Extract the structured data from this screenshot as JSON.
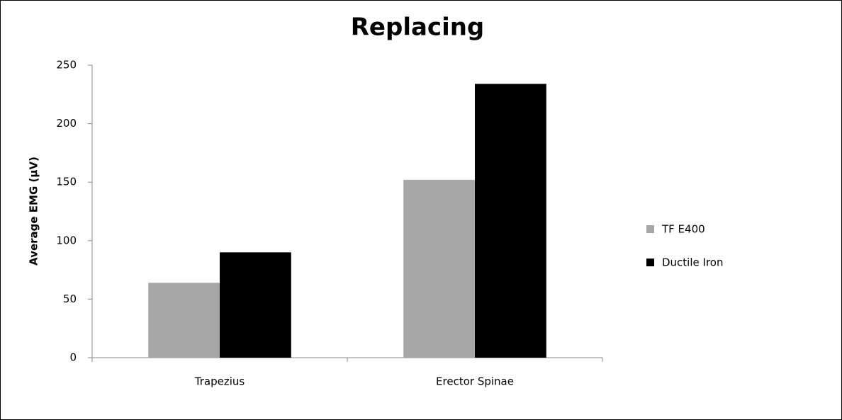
{
  "chart_data": {
    "type": "bar",
    "title": "Replacing",
    "y_label": "Average EMG (µV)",
    "categories": [
      "Trapezius",
      "Erector Spinae"
    ],
    "series": [
      {
        "name": "TF E400",
        "color": "#a6a6a6",
        "values": [
          64,
          152
        ]
      },
      {
        "name": "Ductile Iron",
        "color": "#000000",
        "values": [
          90,
          234
        ]
      }
    ],
    "ylim": [
      0,
      250
    ],
    "yticks": [
      0,
      50,
      100,
      150,
      200,
      250
    ],
    "grid": false,
    "legend": "right"
  }
}
